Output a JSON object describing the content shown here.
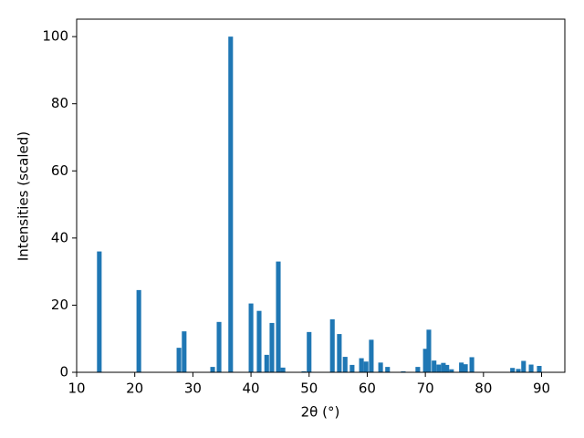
{
  "chart_data": {
    "type": "bar",
    "xlabel": "2θ (°)",
    "ylabel": "Intensities (scaled)",
    "color": "#1f77b4",
    "x": [
      13.9,
      20.7,
      27.6,
      28.5,
      33.4,
      34.5,
      36.5,
      40.0,
      41.4,
      42.7,
      43.6,
      44.7,
      45.5,
      49.1,
      50.0,
      54.0,
      55.2,
      56.2,
      57.4,
      59.0,
      59.8,
      60.7,
      62.3,
      63.5,
      66.2,
      68.7,
      70.0,
      70.6,
      71.5,
      72.3,
      73.1,
      73.7,
      74.5,
      76.2,
      76.9,
      78.0,
      85.0,
      86.0,
      86.9,
      88.2,
      89.6
    ],
    "values": [
      36,
      24.5,
      7.3,
      12.2,
      1.6,
      15,
      100,
      20.5,
      18.3,
      5.2,
      14.7,
      33,
      1.4,
      0.3,
      12,
      15.8,
      11.4,
      4.6,
      2.2,
      4.2,
      3.2,
      9.7,
      2.9,
      1.6,
      0.3,
      1.6,
      7,
      12.7,
      3.5,
      2.3,
      2.8,
      2.2,
      0.9,
      2.9,
      2.4,
      4.5,
      1.3,
      1.0,
      3.4,
      2.3,
      1.9
    ],
    "xlim": [
      10,
      94
    ],
    "ylim": [
      0,
      105.2
    ],
    "xticks": [
      10,
      20,
      30,
      40,
      50,
      60,
      70,
      80,
      90
    ],
    "yticks": [
      0,
      20,
      40,
      60,
      80,
      100
    ]
  }
}
